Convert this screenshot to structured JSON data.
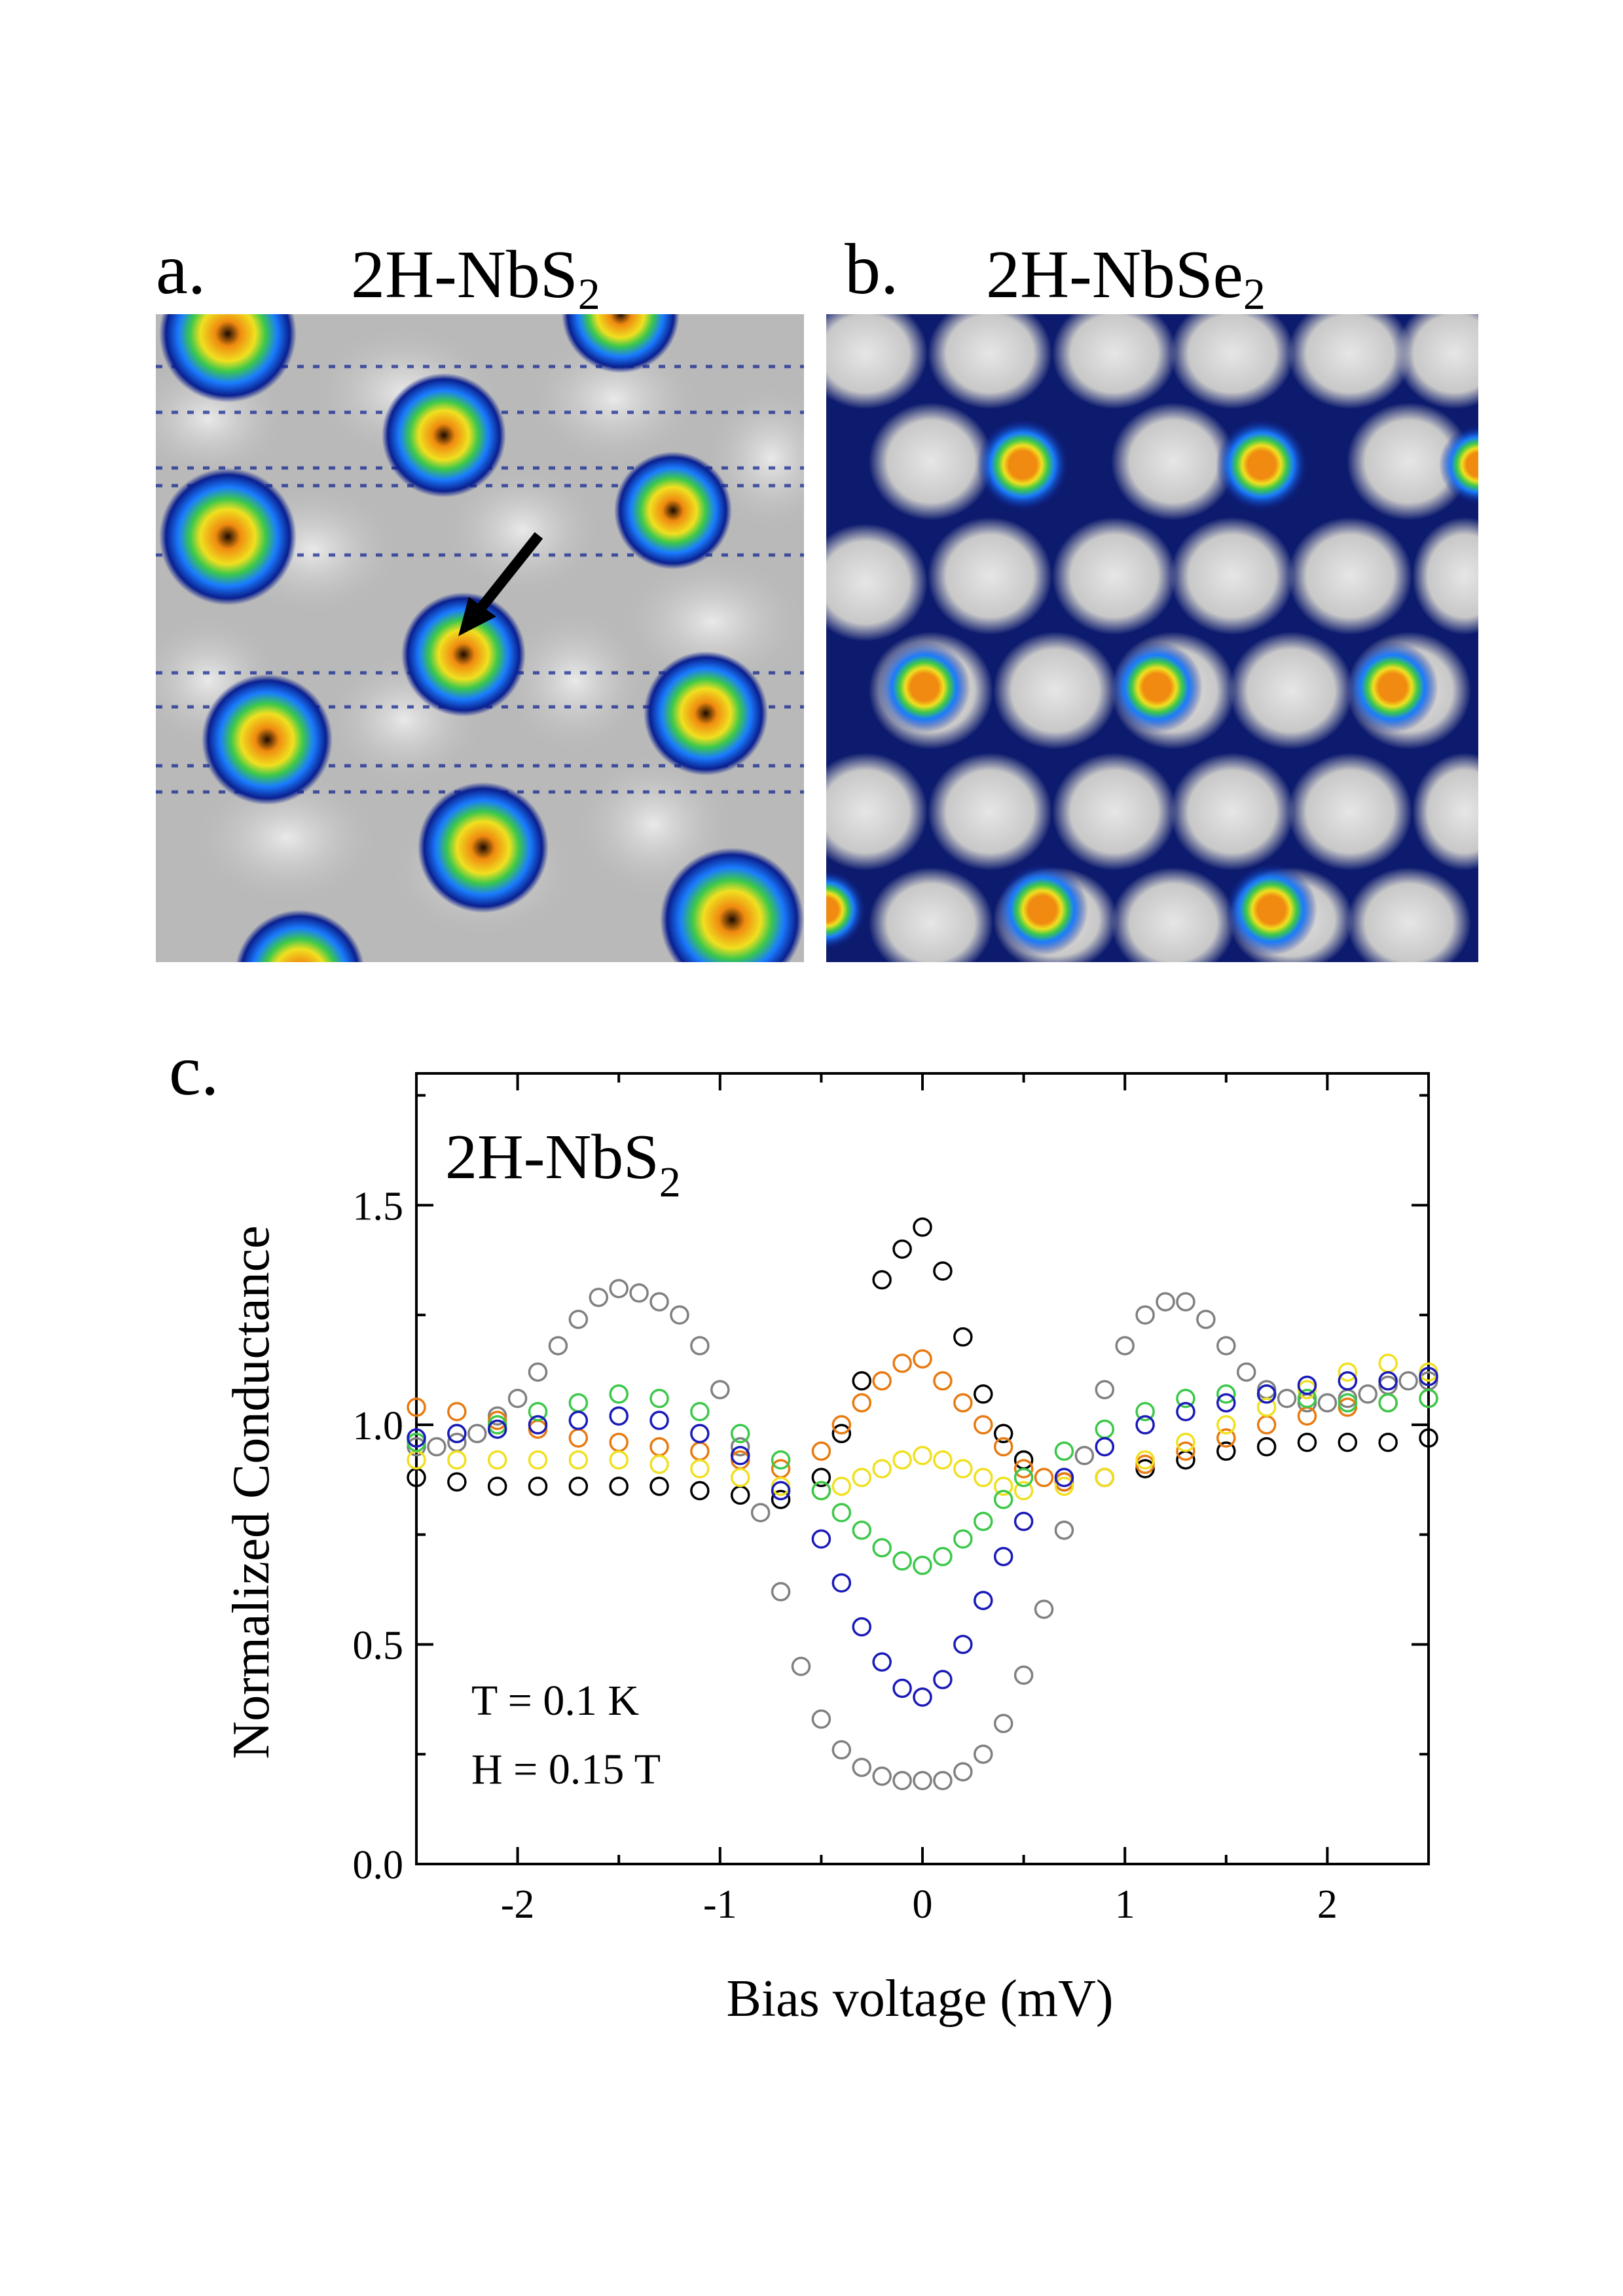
{
  "panels": {
    "a": {
      "letter": "a.",
      "title_main": "2H-NbS",
      "title_sub": "2"
    },
    "b": {
      "letter": "b.",
      "title_main": "2H-NbSe",
      "title_sub": "2"
    },
    "c": {
      "letter": "c."
    }
  },
  "colors": {
    "map_background": "#c8c8c8",
    "vortex_outer": "#0a1f8f",
    "vortex_mid": "#1a7cff",
    "vortex_green": "#3cc84a",
    "vortex_yellow": "#f0e020",
    "vortex_core": "#f08a10",
    "arrow": "#000000"
  },
  "chart_data": {
    "type": "scatter",
    "title_main": "2H-NbS",
    "title_sub": "2",
    "xlabel": "Bias voltage (mV)",
    "ylabel": "Normalized Conductance",
    "xlim": [
      -2.5,
      2.5
    ],
    "ylim": [
      0.0,
      1.8
    ],
    "xticks": [
      -2,
      -1,
      0,
      1,
      2
    ],
    "xtick_labels": [
      "-2",
      "-1",
      "0",
      "1",
      "2"
    ],
    "yticks": [
      0.0,
      0.5,
      1.0,
      1.5
    ],
    "ytick_labels": [
      "0.0",
      "0.5",
      "1.0",
      "1.5"
    ],
    "annotations": [
      "T = 0.1 K",
      "H = 0.15 T"
    ],
    "marker": "open-circle",
    "series": [
      {
        "color": "#808080",
        "x": [
          -2.5,
          -2.4,
          -2.3,
          -2.2,
          -2.1,
          -2.0,
          -1.9,
          -1.8,
          -1.7,
          -1.6,
          -1.5,
          -1.4,
          -1.3,
          -1.2,
          -1.1,
          -1.0,
          -0.9,
          -0.8,
          -0.7,
          -0.6,
          -0.5,
          -0.4,
          -0.3,
          -0.2,
          -0.1,
          0.0,
          0.1,
          0.2,
          0.3,
          0.4,
          0.5,
          0.6,
          0.7,
          0.8,
          0.9,
          1.0,
          1.1,
          1.2,
          1.3,
          1.4,
          1.5,
          1.6,
          1.7,
          1.8,
          1.9,
          2.0,
          2.1,
          2.2,
          2.3,
          2.4,
          2.5
        ],
        "y": [
          0.95,
          0.95,
          0.96,
          0.98,
          1.02,
          1.06,
          1.12,
          1.18,
          1.24,
          1.29,
          1.31,
          1.3,
          1.28,
          1.25,
          1.18,
          1.08,
          0.95,
          0.8,
          0.62,
          0.45,
          0.33,
          0.26,
          0.22,
          0.2,
          0.19,
          0.19,
          0.19,
          0.21,
          0.25,
          0.32,
          0.43,
          0.58,
          0.76,
          0.93,
          1.08,
          1.18,
          1.25,
          1.28,
          1.28,
          1.24,
          1.18,
          1.12,
          1.08,
          1.06,
          1.05,
          1.05,
          1.06,
          1.07,
          1.09,
          1.1,
          1.1
        ]
      },
      {
        "color": "#000000",
        "x": [
          -2.5,
          -2.3,
          -2.1,
          -1.9,
          -1.7,
          -1.5,
          -1.3,
          -1.1,
          -0.9,
          -0.7,
          -0.5,
          -0.4,
          -0.3,
          -0.2,
          -0.1,
          0.0,
          0.1,
          0.2,
          0.3,
          0.4,
          0.5,
          0.7,
          0.9,
          1.1,
          1.3,
          1.5,
          1.7,
          1.9,
          2.1,
          2.3,
          2.5
        ],
        "y": [
          0.88,
          0.87,
          0.86,
          0.86,
          0.86,
          0.86,
          0.86,
          0.85,
          0.84,
          0.83,
          0.88,
          0.98,
          1.1,
          1.33,
          1.4,
          1.45,
          1.35,
          1.2,
          1.07,
          0.98,
          0.92,
          0.87,
          0.88,
          0.9,
          0.92,
          0.94,
          0.95,
          0.96,
          0.96,
          0.96,
          0.97
        ]
      },
      {
        "color": "#e87a10",
        "x": [
          -2.5,
          -2.3,
          -2.1,
          -1.9,
          -1.7,
          -1.5,
          -1.3,
          -1.1,
          -0.9,
          -0.7,
          -0.5,
          -0.4,
          -0.3,
          -0.2,
          -0.1,
          0.0,
          0.1,
          0.2,
          0.3,
          0.4,
          0.5,
          0.6,
          0.7,
          0.9,
          1.1,
          1.3,
          1.5,
          1.7,
          1.9,
          2.1,
          2.3,
          2.5
        ],
        "y": [
          1.04,
          1.03,
          1.01,
          0.99,
          0.97,
          0.96,
          0.95,
          0.94,
          0.92,
          0.9,
          0.94,
          1.0,
          1.05,
          1.1,
          1.14,
          1.15,
          1.1,
          1.05,
          1.0,
          0.95,
          0.9,
          0.88,
          0.87,
          0.88,
          0.91,
          0.94,
          0.97,
          1.0,
          1.02,
          1.04,
          1.05,
          1.06
        ]
      },
      {
        "color": "#f0e020",
        "x": [
          -2.5,
          -2.3,
          -2.1,
          -1.9,
          -1.7,
          -1.5,
          -1.3,
          -1.1,
          -0.9,
          -0.7,
          -0.5,
          -0.4,
          -0.3,
          -0.2,
          -0.1,
          0.0,
          0.1,
          0.2,
          0.3,
          0.4,
          0.5,
          0.7,
          0.9,
          1.1,
          1.3,
          1.5,
          1.7,
          1.9,
          2.1,
          2.3,
          2.5
        ],
        "y": [
          0.92,
          0.92,
          0.92,
          0.92,
          0.92,
          0.92,
          0.91,
          0.9,
          0.88,
          0.86,
          0.85,
          0.86,
          0.88,
          0.9,
          0.92,
          0.93,
          0.92,
          0.9,
          0.88,
          0.86,
          0.85,
          0.86,
          0.88,
          0.92,
          0.96,
          1.0,
          1.04,
          1.08,
          1.12,
          1.14,
          1.12
        ]
      },
      {
        "color": "#3cc84a",
        "x": [
          -2.5,
          -2.3,
          -2.1,
          -1.9,
          -1.7,
          -1.5,
          -1.3,
          -1.1,
          -0.9,
          -0.7,
          -0.5,
          -0.4,
          -0.3,
          -0.2,
          -0.1,
          0.0,
          0.1,
          0.2,
          0.3,
          0.4,
          0.5,
          0.7,
          0.9,
          1.1,
          1.3,
          1.5,
          1.7,
          1.9,
          2.1,
          2.3,
          2.5
        ],
        "y": [
          0.96,
          0.98,
          1.0,
          1.03,
          1.05,
          1.07,
          1.06,
          1.03,
          0.98,
          0.92,
          0.85,
          0.8,
          0.76,
          0.72,
          0.69,
          0.68,
          0.7,
          0.74,
          0.78,
          0.83,
          0.88,
          0.94,
          0.99,
          1.03,
          1.06,
          1.07,
          1.07,
          1.06,
          1.05,
          1.05,
          1.06
        ]
      },
      {
        "color": "#1a1ab8",
        "x": [
          -2.5,
          -2.3,
          -2.1,
          -1.9,
          -1.7,
          -1.5,
          -1.3,
          -1.1,
          -0.9,
          -0.7,
          -0.5,
          -0.4,
          -0.3,
          -0.2,
          -0.1,
          0.0,
          0.1,
          0.2,
          0.3,
          0.4,
          0.5,
          0.7,
          0.9,
          1.1,
          1.3,
          1.5,
          1.7,
          1.9,
          2.1,
          2.3,
          2.5
        ],
        "y": [
          0.97,
          0.98,
          0.99,
          1.0,
          1.01,
          1.02,
          1.01,
          0.98,
          0.93,
          0.85,
          0.74,
          0.64,
          0.54,
          0.46,
          0.4,
          0.38,
          0.42,
          0.5,
          0.6,
          0.7,
          0.78,
          0.88,
          0.95,
          1.0,
          1.03,
          1.05,
          1.07,
          1.09,
          1.1,
          1.1,
          1.11
        ]
      }
    ]
  }
}
